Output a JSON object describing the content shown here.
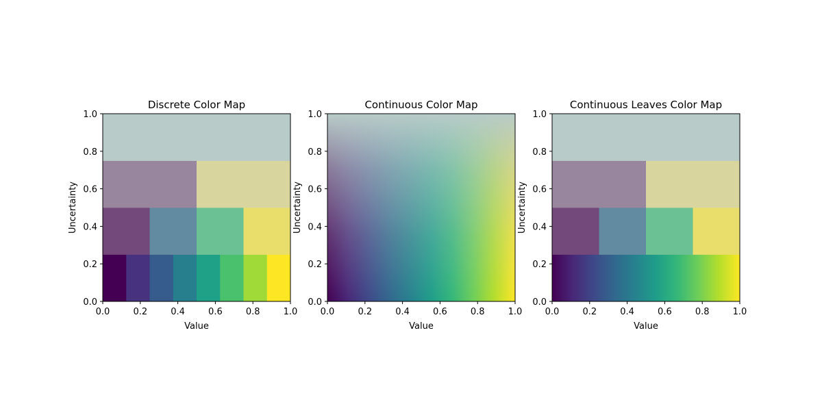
{
  "chart_data": [
    {
      "type": "heatmap",
      "title": "Discrete Color Map",
      "xlabel": "Value",
      "ylabel": "Uncertainty",
      "xlim": [
        0,
        1
      ],
      "ylim": [
        0,
        1
      ],
      "xticks": [
        "0.0",
        "0.2",
        "0.4",
        "0.6",
        "0.8",
        "1.0"
      ],
      "yticks": [
        "0.0",
        "0.2",
        "0.4",
        "0.6",
        "0.8",
        "1.0"
      ],
      "colormap": "viridis",
      "mode": "discrete",
      "levels": [
        {
          "uncertainty_range": [
            0.0,
            0.25
          ],
          "value_bins": 8,
          "colors": [
            "#440154",
            "#46327e",
            "#365c8d",
            "#277f8e",
            "#1fa187",
            "#4ac16d",
            "#a0da39",
            "#fde725"
          ]
        },
        {
          "uncertainty_range": [
            0.25,
            0.5
          ],
          "value_bins": 4,
          "colors": [
            "#73487a",
            "#628aa0",
            "#6cc194",
            "#e9de6b"
          ]
        },
        {
          "uncertainty_range": [
            0.5,
            0.75
          ],
          "value_bins": 2,
          "colors": [
            "#98869e",
            "#d8d59f"
          ]
        },
        {
          "uncertainty_range": [
            0.75,
            1.0
          ],
          "value_bins": 1,
          "colors": [
            "#b8cbc8"
          ]
        }
      ]
    },
    {
      "type": "heatmap",
      "title": "Continuous Color Map",
      "xlabel": "Value",
      "ylabel": "Uncertainty",
      "xlim": [
        0,
        1
      ],
      "ylim": [
        0,
        1
      ],
      "xticks": [
        "0.0",
        "0.2",
        "0.4",
        "0.6",
        "0.8",
        "1.0"
      ],
      "yticks": [
        "0.0",
        "0.2",
        "0.4",
        "0.6",
        "0.8",
        "1.0"
      ],
      "colormap": "viridis",
      "mode": "continuous",
      "desaturation_color": "#b8cbc8"
    },
    {
      "type": "heatmap",
      "title": "Continuous Leaves Color Map",
      "xlabel": "Value",
      "ylabel": "Uncertainty",
      "xlim": [
        0,
        1
      ],
      "ylim": [
        0,
        1
      ],
      "xticks": [
        "0.0",
        "0.2",
        "0.4",
        "0.6",
        "0.8",
        "1.0"
      ],
      "yticks": [
        "0.0",
        "0.2",
        "0.4",
        "0.6",
        "0.8",
        "1.0"
      ],
      "colormap": "viridis",
      "mode": "continuous-leaves",
      "levels": [
        {
          "uncertainty_range": [
            0.0,
            0.25
          ],
          "value_bins": "continuous",
          "colors": []
        },
        {
          "uncertainty_range": [
            0.25,
            0.5
          ],
          "value_bins": 4,
          "colors": [
            "#73487a",
            "#628aa0",
            "#6cc194",
            "#e9de6b"
          ]
        },
        {
          "uncertainty_range": [
            0.5,
            0.75
          ],
          "value_bins": 2,
          "colors": [
            "#98869e",
            "#d8d59f"
          ]
        },
        {
          "uncertainty_range": [
            0.75,
            1.0
          ],
          "value_bins": 1,
          "colors": [
            "#b8cbc8"
          ]
        }
      ]
    }
  ]
}
